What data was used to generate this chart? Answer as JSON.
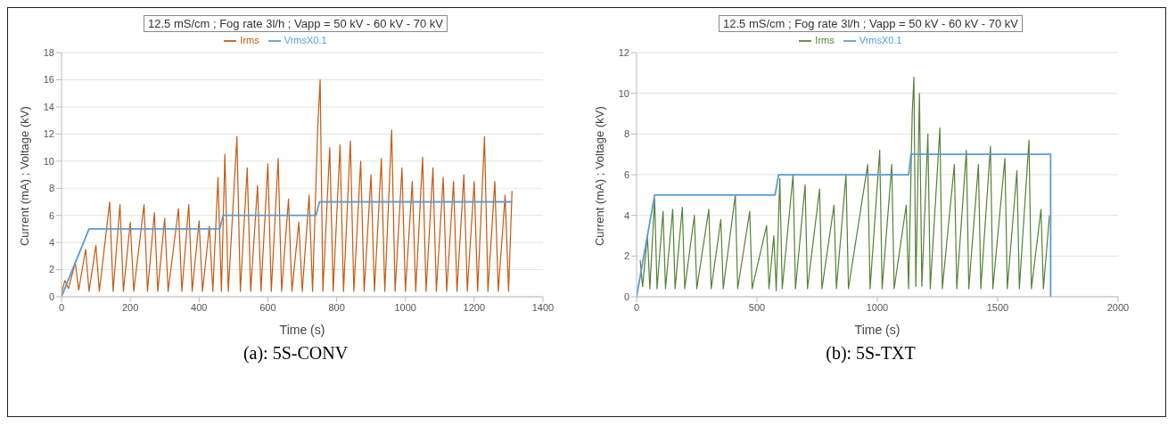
{
  "chart_data": [
    {
      "type": "line",
      "title": "12.5 mS/cm ; Fog rate 3l/h ; Vapp = 50 kV - 60 kV - 70 kV",
      "xlabel": "Time (s)",
      "ylabel": "Current (mA) ; Voltage (kV)",
      "annotations": [
        "(a): 5S-CONV"
      ],
      "xlim": [
        0,
        1400
      ],
      "xticks": [
        0,
        200,
        400,
        600,
        800,
        1000,
        1200,
        1400
      ],
      "ylim": [
        0,
        18
      ],
      "yticks": [
        0,
        2,
        4,
        6,
        8,
        10,
        12,
        14,
        16,
        18
      ],
      "grid": "y",
      "legend": "top",
      "series": [
        {
          "name": "Irms",
          "color": "#c55a11",
          "x": [
            0,
            10,
            20,
            40,
            50,
            70,
            80,
            100,
            110,
            140,
            150,
            170,
            180,
            200,
            210,
            240,
            250,
            270,
            280,
            300,
            310,
            340,
            350,
            370,
            380,
            400,
            410,
            430,
            440,
            455,
            465,
            475,
            485,
            510,
            520,
            540,
            550,
            570,
            580,
            600,
            610,
            630,
            640,
            660,
            670,
            690,
            700,
            720,
            730,
            745,
            752,
            760,
            780,
            790,
            810,
            820,
            840,
            850,
            870,
            880,
            900,
            910,
            930,
            940,
            960,
            970,
            990,
            1000,
            1020,
            1030,
            1050,
            1060,
            1080,
            1090,
            1110,
            1120,
            1140,
            1150,
            1170,
            1180,
            1200,
            1210,
            1230,
            1240,
            1260,
            1270,
            1290,
            1300,
            1310
          ],
          "values": [
            0.3,
            1.2,
            0.6,
            2.5,
            0.5,
            3.5,
            0.4,
            3.8,
            0.4,
            7,
            0.4,
            6.8,
            0.4,
            5.5,
            0.4,
            6.8,
            0.4,
            6.2,
            0.4,
            5.8,
            0.4,
            6.5,
            0.4,
            6.8,
            0.4,
            5.6,
            0.4,
            5.2,
            0.4,
            8.8,
            0.4,
            10.5,
            0.4,
            11.8,
            0.4,
            9.5,
            0.4,
            8.2,
            0.4,
            9.8,
            0.4,
            10.2,
            0.4,
            7.2,
            0.4,
            5.5,
            0.4,
            7.5,
            0.4,
            12.5,
            16,
            0.4,
            11,
            0.4,
            11.2,
            0.4,
            11.5,
            0.4,
            10,
            0.4,
            9,
            0.4,
            10.2,
            0.4,
            12.3,
            0.4,
            9.5,
            0.4,
            8.5,
            0.4,
            10.3,
            0.4,
            9.5,
            0.4,
            8.8,
            0.4,
            8.5,
            0.4,
            9,
            0.4,
            8.5,
            0.4,
            11.8,
            0.4,
            8.5,
            0.4,
            7.5,
            0.4,
            7.8
          ]
        },
        {
          "name": "VrmsX0.1",
          "color": "#5b9bd5",
          "x": [
            0,
            80,
            460,
            470,
            740,
            750,
            1310
          ],
          "values": [
            0,
            5,
            5,
            6,
            6,
            7,
            7
          ]
        }
      ]
    },
    {
      "type": "line",
      "title": "12.5 mS/cm ; Fog rate 3l/h ; Vapp = 50 kV - 60 kV - 70 kV",
      "xlabel": "Time (s)",
      "ylabel": "Current (mA) ; Voltage (kV)",
      "annotations": [
        "(b): 5S-TXT"
      ],
      "xlim": [
        0,
        2000
      ],
      "xticks": [
        0,
        500,
        1000,
        1500,
        2000
      ],
      "ylim": [
        0,
        12
      ],
      "yticks": [
        0,
        2,
        4,
        6,
        8,
        10,
        12
      ],
      "grid": "y",
      "legend": "top",
      "series": [
        {
          "name": "Irms",
          "color": "#548235",
          "x": [
            15,
            25,
            45,
            55,
            75,
            85,
            110,
            120,
            150,
            160,
            190,
            200,
            240,
            250,
            300,
            310,
            350,
            360,
            410,
            420,
            470,
            480,
            540,
            550,
            570,
            580,
            595,
            605,
            650,
            660,
            700,
            710,
            760,
            770,
            820,
            830,
            870,
            880,
            960,
            970,
            1010,
            1020,
            1060,
            1070,
            1120,
            1130,
            1145,
            1152,
            1160,
            1175,
            1185,
            1210,
            1220,
            1260,
            1270,
            1320,
            1330,
            1370,
            1380,
            1420,
            1430,
            1470,
            1480,
            1530,
            1540,
            1580,
            1590,
            1630,
            1640,
            1680,
            1690,
            1715
          ],
          "values": [
            1.8,
            0.5,
            3,
            0.4,
            4.8,
            0.4,
            4.2,
            0.4,
            4.3,
            0.4,
            4.4,
            0.4,
            4,
            0.4,
            4.3,
            0.4,
            3.8,
            0.4,
            5,
            0.4,
            4.2,
            0.4,
            3.5,
            0.4,
            3,
            0.3,
            5.8,
            0.4,
            6,
            0.4,
            5.5,
            0.4,
            5.3,
            0.4,
            4.5,
            0.4,
            6,
            0.4,
            6.5,
            0.4,
            7.2,
            0.4,
            6.5,
            0.4,
            4.5,
            0.4,
            9,
            10.8,
            0.5,
            10,
            0.5,
            8,
            0.4,
            8.3,
            0.4,
            6.5,
            0.4,
            7.2,
            0.4,
            6.5,
            0.4,
            7.4,
            0.4,
            6.8,
            0.4,
            6.2,
            0.4,
            7.7,
            0.4,
            4.3,
            0.4,
            4
          ]
        },
        {
          "name": "VrmsX0.1",
          "color": "#5b9bd5",
          "x": [
            0,
            75,
            575,
            590,
            1130,
            1140,
            1720,
            1720
          ],
          "values": [
            0,
            5,
            5,
            6,
            6,
            7,
            7,
            0
          ]
        }
      ]
    }
  ]
}
